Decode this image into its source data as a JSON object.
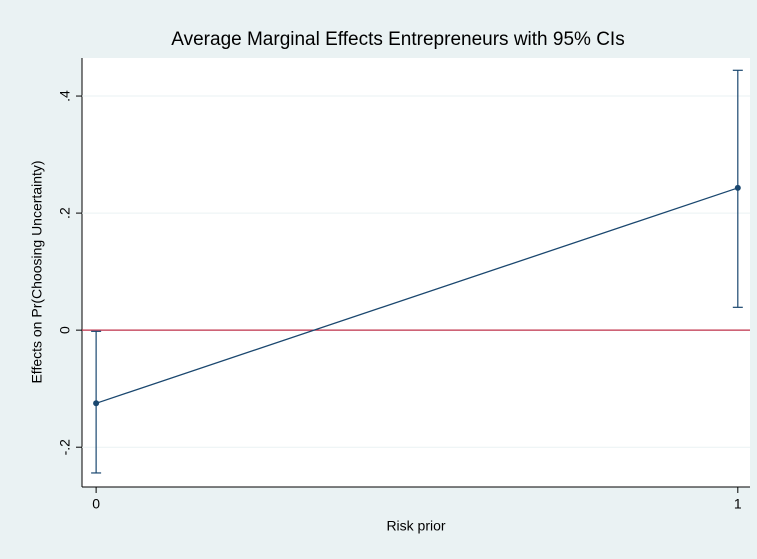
{
  "chart_data": {
    "type": "line",
    "title": "Average Marginal Effects Entrepreneurs with 95% CIs",
    "xlabel": "Risk prior",
    "ylabel": "Effects on Pr(Choosing Uncertainty)",
    "x": [
      0,
      1
    ],
    "series": [
      {
        "color": "#1a476f",
        "values": [
          -0.125,
          0.243
        ],
        "lower": [
          -0.244,
          0.039
        ],
        "upper": [
          -0.002,
          0.444
        ]
      }
    ],
    "xlim": [
      -0.022,
      1.019
    ],
    "xticks": [
      0,
      1
    ],
    "ylim": [
      -0.268,
      0.465
    ],
    "yticks": [
      {
        "value": -0.2,
        "label": "-.2"
      },
      0,
      {
        "value": 0.2,
        "label": ".2"
      },
      {
        "value": 0.4,
        "label": ".4"
      }
    ],
    "hline": 0,
    "hline_color": "#c0304a",
    "grid": true
  }
}
